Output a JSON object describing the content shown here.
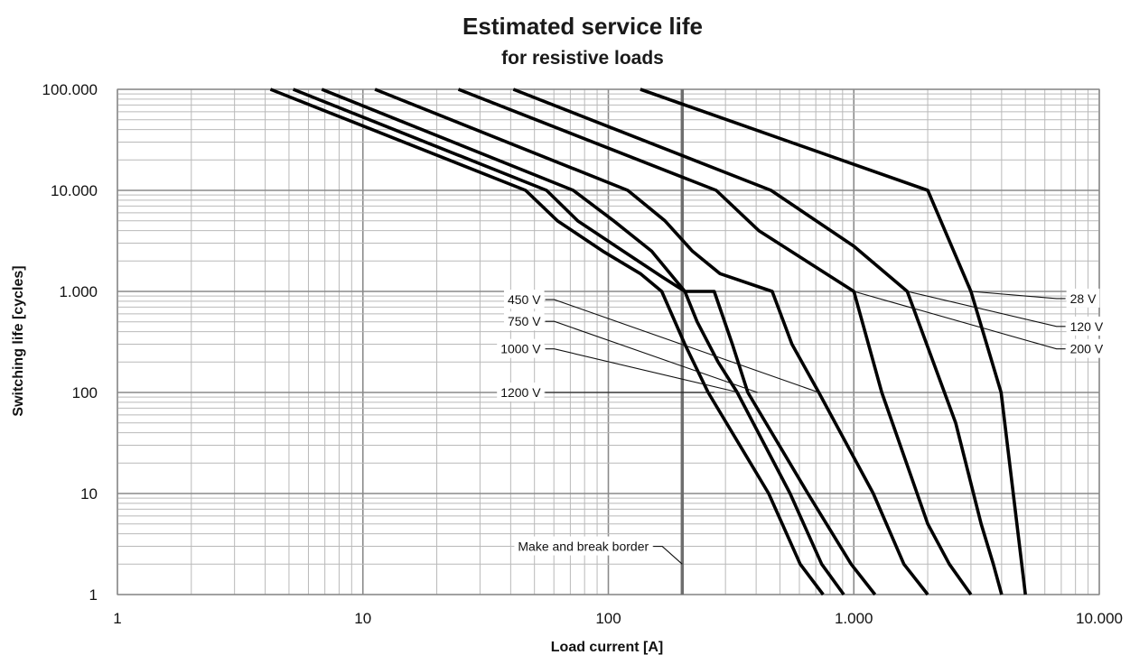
{
  "chart_data": {
    "type": "line",
    "title": "Estimated service life",
    "subtitle": "for resistive loads",
    "xlabel": "Load current [A]",
    "ylabel": "Switching life  [cycles]",
    "x_scale": "log",
    "y_scale": "log",
    "xlim": [
      1,
      10000
    ],
    "ylim": [
      1,
      100000
    ],
    "x_ticks": [
      {
        "value": 1,
        "label": "1"
      },
      {
        "value": 10,
        "label": "10"
      },
      {
        "value": 100,
        "label": "100"
      },
      {
        "value": 1000,
        "label": "1.000"
      },
      {
        "value": 10000,
        "label": "10.000"
      }
    ],
    "y_ticks": [
      {
        "value": 1,
        "label": "1"
      },
      {
        "value": 10,
        "label": "10"
      },
      {
        "value": 100,
        "label": "100"
      },
      {
        "value": 1000,
        "label": "1.000"
      },
      {
        "value": 10000,
        "label": "10.000"
      },
      {
        "value": 100000,
        "label": "100.000"
      }
    ],
    "grid": true,
    "legend": "none",
    "series": [
      {
        "name": "1200 V",
        "points": [
          [
            4.2,
            100000
          ],
          [
            46,
            10000
          ],
          [
            62,
            5000
          ],
          [
            95,
            2500
          ],
          [
            135,
            1500
          ],
          [
            165,
            1000
          ],
          [
            205,
            300
          ],
          [
            255,
            100
          ],
          [
            450,
            10
          ],
          [
            605,
            2
          ],
          [
            750,
            1
          ]
        ]
      },
      {
        "name": "1000 V",
        "points": [
          [
            5.2,
            100000
          ],
          [
            56,
            10000
          ],
          [
            75,
            5000
          ],
          [
            115,
            2500
          ],
          [
            165,
            1400
          ],
          [
            205,
            1000
          ],
          [
            230,
            500
          ],
          [
            280,
            200
          ],
          [
            335,
            100
          ],
          [
            550,
            10
          ],
          [
            740,
            2
          ],
          [
            910,
            1
          ]
        ]
      },
      {
        "name": "750 V",
        "points": [
          [
            6.8,
            100000
          ],
          [
            72,
            10000
          ],
          [
            105,
            5000
          ],
          [
            150,
            2500
          ],
          [
            205,
            1000
          ],
          [
            270,
            1000
          ],
          [
            320,
            300
          ],
          [
            370,
            100
          ],
          [
            650,
            10
          ],
          [
            975,
            2
          ],
          [
            1220,
            1
          ]
        ]
      },
      {
        "name": "450 V",
        "points": [
          [
            11.2,
            100000
          ],
          [
            120,
            10000
          ],
          [
            170,
            5000
          ],
          [
            220,
            2500
          ],
          [
            285,
            1500
          ],
          [
            465,
            1000
          ],
          [
            560,
            300
          ],
          [
            720,
            100
          ],
          [
            1200,
            10
          ],
          [
            1600,
            2
          ],
          [
            2000,
            1
          ]
        ]
      },
      {
        "name": "200 V",
        "points": [
          [
            24.5,
            100000
          ],
          [
            275,
            10000
          ],
          [
            410,
            4000
          ],
          [
            1000,
            1000
          ],
          [
            1300,
            100
          ],
          [
            2000,
            5
          ],
          [
            2450,
            2
          ],
          [
            3000,
            1
          ]
        ]
      },
      {
        "name": "120 V",
        "points": [
          [
            41,
            100000
          ],
          [
            460,
            10000
          ],
          [
            1000,
            2800
          ],
          [
            1650,
            1000
          ],
          [
            2600,
            50
          ],
          [
            3300,
            5
          ],
          [
            3700,
            2
          ],
          [
            4000,
            1
          ]
        ]
      },
      {
        "name": "28 V",
        "points": [
          [
            135,
            100000
          ],
          [
            2000,
            10000
          ],
          [
            3000,
            1000
          ],
          [
            3980,
            100
          ],
          [
            5000,
            1
          ]
        ]
      }
    ],
    "annotations": [
      {
        "text": "28 V",
        "text_at": [
          7600,
          850
        ],
        "points_to": [
          3000,
          1000
        ]
      },
      {
        "text": "120 V",
        "text_at": [
          7600,
          450
        ],
        "points_to": [
          1650,
          1000
        ]
      },
      {
        "text": "200 V",
        "text_at": [
          7600,
          270
        ],
        "points_to": [
          1000,
          1000
        ]
      },
      {
        "text": "450 V",
        "text_at": [
          53,
          830
        ],
        "points_to": [
          720,
          100
        ]
      },
      {
        "text": "750 V",
        "text_at": [
          53,
          505
        ],
        "points_to": [
          405,
          100
        ]
      },
      {
        "text": "1000 V",
        "text_at": [
          53,
          270
        ],
        "points_to": [
          340,
          100
        ]
      },
      {
        "text": "1200 V",
        "text_at": [
          53,
          100
        ],
        "points_to": [
          270,
          100
        ]
      },
      {
        "text": "Make and break border",
        "text_at": [
          146,
          3
        ],
        "points_to": [
          200,
          2
        ]
      }
    ],
    "reference_lines": [
      {
        "axis": "x",
        "value": 200,
        "label": "Make and break border"
      }
    ]
  }
}
